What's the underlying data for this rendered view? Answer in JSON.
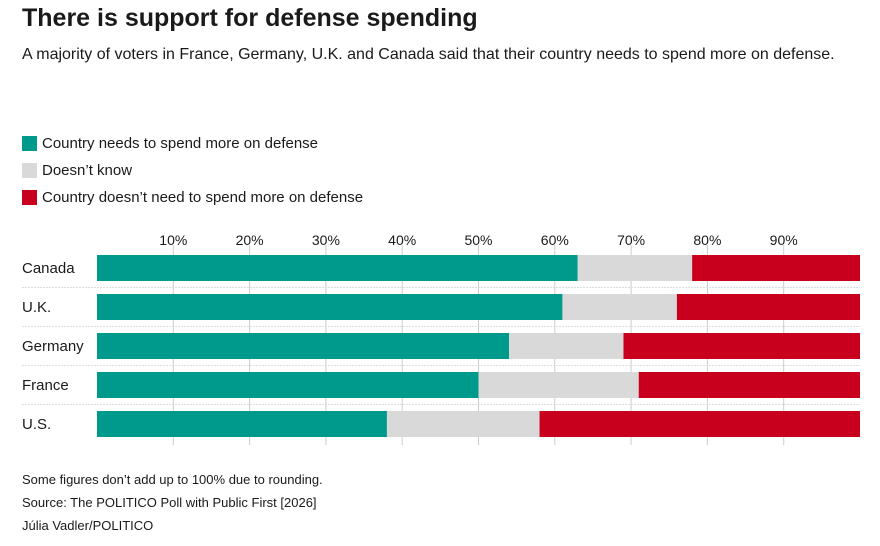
{
  "title": "There is support for defense spending",
  "subtitle": "A majority of voters in France, Germany, U.K. and Canada said that their country needs to spend more on defense.",
  "footnotes": [
    "Some figures don’t add up to 100% due to rounding.",
    "Source: The POLITICO Poll with Public First [2026]",
    "Júlia Vadler/POLITICO"
  ],
  "chart_data": {
    "type": "bar",
    "orientation": "horizontal",
    "stacked": true,
    "categories": [
      "Canada",
      "U.K.",
      "Germany",
      "France",
      "U.S."
    ],
    "series": [
      {
        "name": "Country needs to spend more on defense",
        "color": "#009a8c",
        "values": [
          63,
          61,
          54,
          50,
          38
        ]
      },
      {
        "name": "Doesn’t know",
        "color": "#d9d9d9",
        "values": [
          15,
          15,
          15,
          21,
          20
        ]
      },
      {
        "name": "Country doesn’t need to spend more on defense",
        "color": "#c8001e",
        "values": [
          22,
          24,
          31,
          29,
          42
        ]
      }
    ],
    "xlim": [
      0,
      100
    ],
    "xticks": [
      10,
      20,
      30,
      40,
      50,
      60,
      70,
      80,
      90
    ],
    "xtick_labels": [
      "10%",
      "20%",
      "30%",
      "40%",
      "50%",
      "60%",
      "70%",
      "80%",
      "90%"
    ],
    "legend_position": "top-left"
  }
}
